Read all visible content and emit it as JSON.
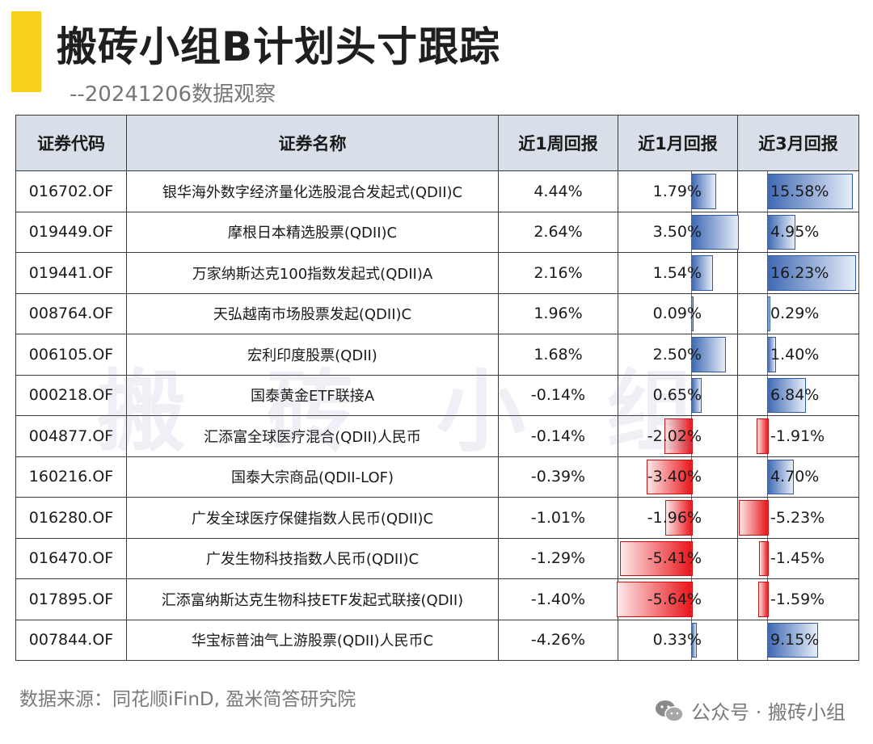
{
  "header": {
    "title": "搬砖小组B计划头寸跟踪",
    "subtitle": "--20241206数据观察"
  },
  "watermark": "搬砖小组",
  "table": {
    "columns": [
      "证券代码",
      "证券名称",
      "近1周回报",
      "近1月回报",
      "近3月回报"
    ],
    "rows": [
      {
        "code": "016702.OF",
        "name": "银华海外数字经济量化选股混合发起式(QDII)C",
        "w1": "4.44%",
        "m1": "1.79%",
        "m3": "15.58%",
        "m1_val": 1.79,
        "m3_val": 15.58
      },
      {
        "code": "019449.OF",
        "name": "摩根日本精选股票(QDII)C",
        "w1": "2.64%",
        "m1": "3.50%",
        "m3": "4.95%",
        "m1_val": 3.5,
        "m3_val": 4.95
      },
      {
        "code": "019441.OF",
        "name": "万家纳斯达克100指数发起式(QDII)A",
        "w1": "2.16%",
        "m1": "1.54%",
        "m3": "16.23%",
        "m1_val": 1.54,
        "m3_val": 16.23
      },
      {
        "code": "008764.OF",
        "name": "天弘越南市场股票发起(QDII)C",
        "w1": "1.96%",
        "m1": "0.09%",
        "m3": "0.29%",
        "m1_val": 0.09,
        "m3_val": 0.29
      },
      {
        "code": "006105.OF",
        "name": "宏利印度股票(QDII)",
        "w1": "1.68%",
        "m1": "2.50%",
        "m3": "1.40%",
        "m1_val": 2.5,
        "m3_val": 1.4
      },
      {
        "code": "000218.OF",
        "name": "国泰黄金ETF联接A",
        "w1": "-0.14%",
        "m1": "0.65%",
        "m3": "6.84%",
        "m1_val": 0.65,
        "m3_val": 6.84
      },
      {
        "code": "004877.OF",
        "name": "汇添富全球医疗混合(QDII)人民币",
        "w1": "-0.14%",
        "m1": "-2.02%",
        "m3": "-1.91%",
        "m1_val": -2.02,
        "m3_val": -1.91
      },
      {
        "code": "160216.OF",
        "name": "国泰大宗商品(QDII-LOF)",
        "w1": "-0.39%",
        "m1": "-3.40%",
        "m3": "4.70%",
        "m1_val": -3.4,
        "m3_val": 4.7
      },
      {
        "code": "016280.OF",
        "name": "广发全球医疗保健指数人民币(QDII)C",
        "w1": "-1.01%",
        "m1": "-1.96%",
        "m3": "-5.23%",
        "m1_val": -1.96,
        "m3_val": -5.23
      },
      {
        "code": "016470.OF",
        "name": "广发生物科技指数人民币(QDII)C",
        "w1": "-1.29%",
        "m1": "-5.41%",
        "m3": "-1.45%",
        "m1_val": -5.41,
        "m3_val": -1.45
      },
      {
        "code": "017895.OF",
        "name": "汇添富纳斯达克生物科技ETF发起式联接(QDII)",
        "w1": "-1.40%",
        "m1": "-5.64%",
        "m3": "-1.59%",
        "m1_val": -5.64,
        "m3_val": -1.59
      },
      {
        "code": "007844.OF",
        "name": "华宝标普油气上游股票(QDII)人民币C",
        "w1": "-4.26%",
        "m1": "0.33%",
        "m3": "9.15%",
        "m1_val": 0.33,
        "m3_val": 9.15
      }
    ]
  },
  "footer": {
    "source": "数据来源：同花顺iFinD, 盈米简答研究院",
    "account": "公众号 · 搬砖小组"
  },
  "colors": {
    "accent": "#f7d21c",
    "positive_bar": "#3f69b3",
    "negative_bar": "#e8141a",
    "header_bg": "#d8dfe8"
  },
  "icons": [
    "wechat-icon"
  ]
}
